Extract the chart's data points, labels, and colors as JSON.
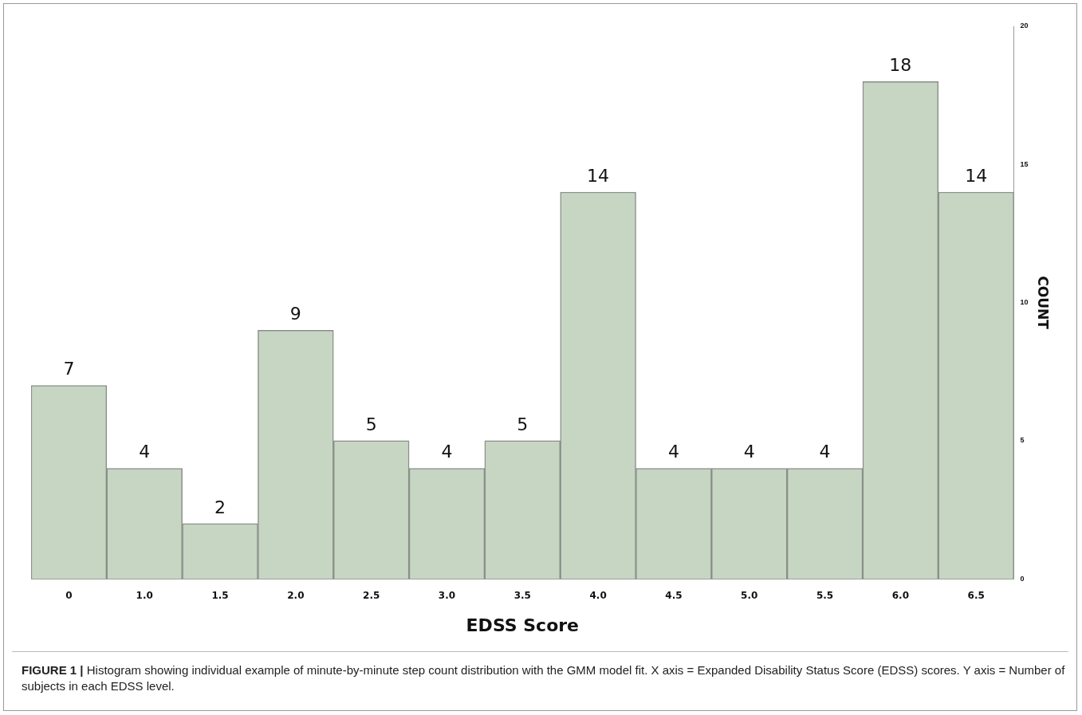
{
  "chart_data": {
    "type": "bar",
    "xlabel": "EDSS Score",
    "ylabel": "COUNT",
    "categories": [
      "0",
      "1.0",
      "1.5",
      "2.0",
      "2.5",
      "3.0",
      "3.5",
      "4.0",
      "4.5",
      "5.0",
      "5.5",
      "6.0",
      "6.5"
    ],
    "values": [
      7,
      4,
      2,
      9,
      5,
      4,
      5,
      14,
      4,
      4,
      4,
      18,
      14
    ],
    "color": "#c6d6c3",
    "ylim": [
      0,
      20
    ],
    "yticks": [
      0,
      5,
      10,
      15,
      20
    ],
    "grid": false,
    "legend": false,
    "data_labels": true,
    "annotations": [
      "FIGURE 1 | Histogram showing individual example of minute-by-minute step count distribution with the GMM model fit. X axis = Expanded Disability Status Score (EDSS) scores. Y axis = Number of subjects in each EDSS level."
    ]
  }
}
